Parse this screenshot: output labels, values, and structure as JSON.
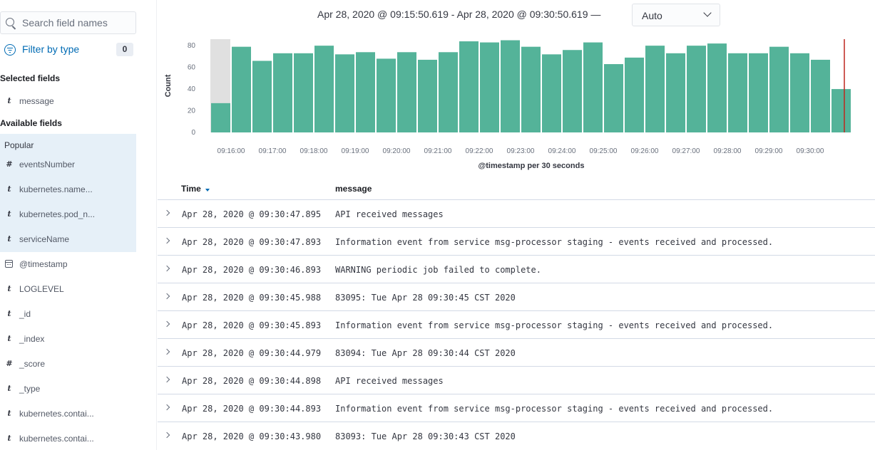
{
  "sidebar": {
    "search_placeholder": "Search field names",
    "filter_label": "Filter by type",
    "filter_count": "0",
    "selected_title": "Selected fields",
    "selected_fields": [
      {
        "type": "t",
        "name": "message"
      }
    ],
    "available_title": "Available fields",
    "popular_label": "Popular",
    "popular_fields": [
      {
        "type": "#",
        "name": "eventsNumber"
      },
      {
        "type": "t",
        "name": "kubernetes.name..."
      },
      {
        "type": "t",
        "name": "kubernetes.pod_n..."
      },
      {
        "type": "t",
        "name": "serviceName"
      }
    ],
    "other_fields": [
      {
        "type": "date",
        "name": "@timestamp"
      },
      {
        "type": "t",
        "name": "LOGLEVEL"
      },
      {
        "type": "t",
        "name": "_id"
      },
      {
        "type": "t",
        "name": "_index"
      },
      {
        "type": "#",
        "name": "_score"
      },
      {
        "type": "t",
        "name": "_type"
      },
      {
        "type": "t",
        "name": "kubernetes.contai..."
      },
      {
        "type": "t",
        "name": "kubernetes.contai..."
      }
    ]
  },
  "header": {
    "time_range": "Apr 28, 2020 @ 09:15:50.619 - Apr 28, 2020 @ 09:30:50.619 —",
    "interval": "Auto"
  },
  "chart_data": {
    "type": "bar",
    "ylabel": "Count",
    "xlabel": "@timestamp per 30 seconds",
    "ylim": [
      0,
      86
    ],
    "yticks": [
      0,
      20,
      40,
      60,
      80
    ],
    "categories": [
      "09:15:30",
      "09:16:00",
      "09:16:30",
      "09:17:00",
      "09:17:30",
      "09:18:00",
      "09:18:30",
      "09:19:00",
      "09:19:30",
      "09:20:00",
      "09:20:30",
      "09:21:00",
      "09:21:30",
      "09:22:00",
      "09:22:30",
      "09:23:00",
      "09:23:30",
      "09:24:00",
      "09:24:30",
      "09:25:00",
      "09:25:30",
      "09:26:00",
      "09:26:30",
      "09:27:00",
      "09:27:30",
      "09:28:00",
      "09:28:30",
      "09:29:00",
      "09:29:30",
      "09:30:00",
      "09:30:30"
    ],
    "values": [
      27,
      79,
      66,
      73,
      73,
      80,
      72,
      74,
      68,
      74,
      67,
      74,
      84,
      83,
      85,
      79,
      72,
      76,
      83,
      63,
      69,
      80,
      73,
      80,
      82,
      73,
      73,
      79,
      73,
      67,
      40
    ],
    "xtick_labels": [
      "09:16:00",
      "09:17:00",
      "09:18:00",
      "09:19:00",
      "09:20:00",
      "09:21:00",
      "09:22:00",
      "09:23:00",
      "09:24:00",
      "09:25:00",
      "09:26:00",
      "09:27:00",
      "09:28:00",
      "09:29:00",
      "09:30:00"
    ],
    "bar_color": "#54b399",
    "partial_bucket_color": "#e0e0e0",
    "now_marker_color": "#bd271e"
  },
  "table": {
    "col_time": "Time",
    "col_message": "message",
    "rows": [
      {
        "time": "Apr 28, 2020 @ 09:30:47.895",
        "message": "API received messages"
      },
      {
        "time": "Apr 28, 2020 @ 09:30:47.893",
        "message": "Information event from service msg-processor staging - events received and processed."
      },
      {
        "time": "Apr 28, 2020 @ 09:30:46.893",
        "message": "WARNING periodic job failed to complete."
      },
      {
        "time": "Apr 28, 2020 @ 09:30:45.988",
        "message": "83095: Tue Apr 28 09:30:45 CST 2020"
      },
      {
        "time": "Apr 28, 2020 @ 09:30:45.893",
        "message": "Information event from service msg-processor staging - events received and processed."
      },
      {
        "time": "Apr 28, 2020 @ 09:30:44.979",
        "message": "83094: Tue Apr 28 09:30:44 CST 2020"
      },
      {
        "time": "Apr 28, 2020 @ 09:30:44.898",
        "message": "API received messages"
      },
      {
        "time": "Apr 28, 2020 @ 09:30:44.893",
        "message": "Information event from service msg-processor staging - events received and processed."
      },
      {
        "time": "Apr 28, 2020 @ 09:30:43.980",
        "message": "83093: Tue Apr 28 09:30:43 CST 2020"
      }
    ]
  }
}
